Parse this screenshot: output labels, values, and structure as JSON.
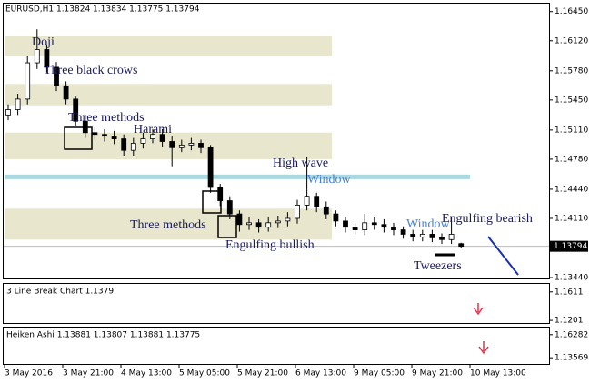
{
  "chart_data": {
    "type": "candlestick",
    "title": "EURUSD,H1 1.13824 1.13834 1.13775 1.13794",
    "open": [
      1.1528,
      1.1534,
      1.1546,
      1.1587,
      1.1602,
      1.1582,
      1.1561,
      1.1546,
      1.1521,
      1.1508,
      1.1506,
      1.1504,
      1.1501,
      1.1488,
      1.1496,
      1.1501,
      1.1506,
      1.1498,
      1.1491,
      1.1494,
      1.1496,
      1.1491,
      1.1446,
      1.1431,
      1.1416,
      1.1404,
      1.1406,
      1.1401,
      1.1406,
      1.1408,
      1.1411,
      1.1426,
      1.1436,
      1.1424,
      1.1416,
      1.1408,
      1.1401,
      1.1398,
      1.1406,
      1.1404,
      1.1401,
      1.1398,
      1.1393,
      1.139,
      1.1393,
      1.1389,
      1.1387,
      1.13824
    ],
    "high": [
      1.154,
      1.1552,
      1.1595,
      1.1625,
      1.1608,
      1.1588,
      1.1566,
      1.155,
      1.1527,
      1.1514,
      1.1512,
      1.151,
      1.1506,
      1.1502,
      1.1508,
      1.1512,
      1.1512,
      1.1504,
      1.15,
      1.1502,
      1.15,
      1.1494,
      1.145,
      1.1436,
      1.142,
      1.1412,
      1.141,
      1.1412,
      1.1414,
      1.1418,
      1.1432,
      1.148,
      1.144,
      1.143,
      1.142,
      1.1412,
      1.1406,
      1.1416,
      1.1412,
      1.141,
      1.1406,
      1.1402,
      1.1398,
      1.1398,
      1.1398,
      1.1394,
      1.1412,
      1.13834
    ],
    "low": [
      1.1522,
      1.1528,
      1.154,
      1.158,
      1.1576,
      1.1555,
      1.154,
      1.1515,
      1.1502,
      1.15,
      1.1498,
      1.1495,
      1.1482,
      1.1482,
      1.149,
      1.1496,
      1.1492,
      1.147,
      1.1486,
      1.1488,
      1.1485,
      1.144,
      1.1425,
      1.141,
      1.1396,
      1.1398,
      1.1395,
      1.1396,
      1.14,
      1.1402,
      1.1405,
      1.142,
      1.1418,
      1.141,
      1.1402,
      1.1395,
      1.1392,
      1.1392,
      1.1398,
      1.1395,
      1.1392,
      1.1388,
      1.1385,
      1.1385,
      1.1384,
      1.1382,
      1.1382,
      1.13775
    ],
    "close": [
      1.1534,
      1.1546,
      1.1587,
      1.1602,
      1.1582,
      1.1561,
      1.1546,
      1.1521,
      1.1508,
      1.1506,
      1.1504,
      1.1501,
      1.1488,
      1.1496,
      1.1501,
      1.1506,
      1.1498,
      1.1491,
      1.1494,
      1.1496,
      1.1491,
      1.1446,
      1.1431,
      1.1416,
      1.1404,
      1.1406,
      1.1401,
      1.1406,
      1.1408,
      1.1411,
      1.1426,
      1.1436,
      1.1424,
      1.1416,
      1.1408,
      1.1401,
      1.1398,
      1.1406,
      1.1404,
      1.1401,
      1.1398,
      1.1393,
      1.139,
      1.1393,
      1.1389,
      1.1387,
      1.1393,
      1.13794
    ],
    "ylim": [
      1.1343,
      1.1654
    ],
    "yticks": [
      {
        "value": 1.1645,
        "label": "1.16450"
      },
      {
        "value": 1.1612,
        "label": "1.16120"
      },
      {
        "value": 1.1578,
        "label": "1.15780"
      },
      {
        "value": 1.1545,
        "label": "1.15450"
      },
      {
        "value": 1.1511,
        "label": "1.15110"
      },
      {
        "value": 1.1478,
        "label": "1.14780"
      },
      {
        "value": 1.1444,
        "label": "1.14440"
      },
      {
        "value": 1.1411,
        "label": "1.14110"
      },
      {
        "value": 1.1344,
        "label": "1.13440"
      }
    ],
    "zones": [
      [
        1.1617,
        1.1595
      ],
      [
        1.1563,
        1.1539
      ],
      [
        1.1508,
        1.1478
      ],
      [
        1.1422,
        1.1387
      ]
    ],
    "window_level": 1.1458,
    "annotations": [
      "Doji",
      "Three black crows",
      "Three methods",
      "Harami",
      "High wave",
      "Window",
      "Three methods",
      "Engulfing bullish",
      "Window",
      "Engulfing bearish",
      "Tweezers"
    ],
    "xticks": [
      "3 May 2016",
      "3 May 21:00",
      "4 May 13:00",
      "5 May 05:00",
      "5 May 21:00",
      "6 May 13:00",
      "9 May 05:00",
      "9 May 21:00",
      "10 May 13:00"
    ],
    "line_break": {
      "title": "3 Line Break Chart 1.1379",
      "ylim": [
        1.1163,
        1.1726
      ],
      "yticks": [
        1.1611,
        1.1201
      ]
    },
    "heiken_ashi": {
      "title": "Heiken Ashi 1.13881 1.13807 1.13881 1.13775",
      "ylim": [
        1.12839,
        1.17117
      ],
      "yticks": [
        1.16282,
        1.13569
      ]
    }
  }
}
